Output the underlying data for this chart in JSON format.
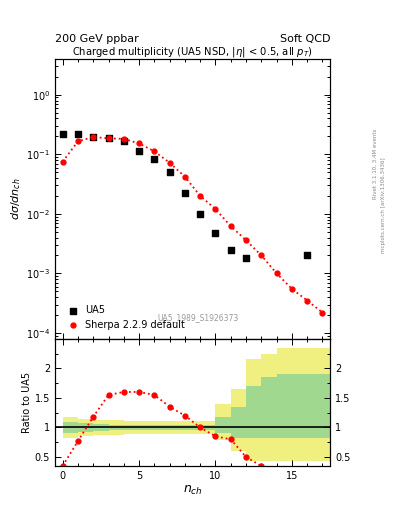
{
  "title_left": "200 GeV ppbar",
  "title_right": "Soft QCD",
  "plot_title": "Charged multiplicity (UA5 NSD, $|\\eta|$ < 0.5, all $p_T$)",
  "xlabel": "$n_{ch}$",
  "ylabel_main": "$d\\sigma/dn_{ch}$",
  "ylabel_ratio": "Ratio to UA5",
  "watermark": "UA5_1989_S1926373",
  "right_label": "Rivet 3.1.10, 3.4M events",
  "right_label2": "mcplots.cern.ch [arXiv:1306.3436]",
  "ua5_nch": [
    0,
    1,
    2,
    3,
    4,
    5,
    6,
    7,
    8,
    9,
    10,
    11,
    12,
    16
  ],
  "ua5_y": [
    0.215,
    0.215,
    0.195,
    0.19,
    0.17,
    0.115,
    0.082,
    0.05,
    0.022,
    0.01,
    0.0048,
    0.0025,
    0.0018,
    0.002
  ],
  "sherpa_nch": [
    0,
    1,
    2,
    3,
    4,
    5,
    6,
    7,
    8,
    9,
    10,
    11,
    12,
    13,
    14,
    15,
    16,
    17
  ],
  "sherpa_y": [
    0.075,
    0.165,
    0.195,
    0.185,
    0.182,
    0.152,
    0.112,
    0.072,
    0.042,
    0.02,
    0.012,
    0.0062,
    0.0036,
    0.002,
    0.001,
    0.00055,
    0.00035,
    0.00022
  ],
  "ratio_nch": [
    0,
    1,
    2,
    3,
    4,
    5,
    6,
    7,
    8,
    9,
    10,
    11,
    12,
    13
  ],
  "ratio_y": [
    0.35,
    0.77,
    1.18,
    1.55,
    1.6,
    1.6,
    1.55,
    1.35,
    1.2,
    1.0,
    0.85,
    0.8,
    0.5,
    0.35
  ],
  "green_band_edges": [
    0,
    1,
    2,
    3,
    4,
    5,
    6,
    7,
    8,
    9,
    10,
    11,
    12,
    13,
    14,
    15,
    16,
    17,
    18
  ],
  "green_band_lo": [
    0.9,
    0.92,
    0.94,
    0.95,
    0.96,
    0.96,
    0.96,
    0.96,
    0.96,
    0.96,
    0.9,
    0.83,
    0.83,
    0.83,
    0.83,
    0.83,
    0.83,
    0.83,
    0.83
  ],
  "green_band_hi": [
    1.1,
    1.08,
    1.06,
    1.05,
    1.04,
    1.04,
    1.04,
    1.04,
    1.04,
    1.04,
    1.18,
    1.35,
    1.7,
    1.85,
    1.9,
    1.9,
    1.9,
    1.9,
    1.9
  ],
  "yellow_band_edges": [
    0,
    1,
    2,
    3,
    4,
    5,
    6,
    7,
    8,
    9,
    10,
    11,
    12,
    13,
    14,
    15,
    16,
    17,
    18
  ],
  "yellow_band_lo": [
    0.82,
    0.85,
    0.87,
    0.88,
    0.89,
    0.89,
    0.89,
    0.89,
    0.89,
    0.89,
    0.78,
    0.6,
    0.43,
    0.43,
    0.43,
    0.43,
    0.43,
    0.43,
    0.43
  ],
  "yellow_band_hi": [
    1.18,
    1.15,
    1.13,
    1.12,
    1.11,
    1.11,
    1.11,
    1.11,
    1.11,
    1.11,
    1.4,
    1.65,
    2.15,
    2.25,
    2.35,
    2.35,
    2.35,
    2.35,
    2.35
  ],
  "ylim_main": [
    8e-05,
    4.0
  ],
  "ylim_ratio": [
    0.35,
    2.5
  ],
  "xlim": [
    -0.5,
    17.5
  ],
  "ua5_color": "black",
  "sherpa_color": "red",
  "green_color": "#a0d890",
  "yellow_color": "#f0f080",
  "bg_color": "white"
}
